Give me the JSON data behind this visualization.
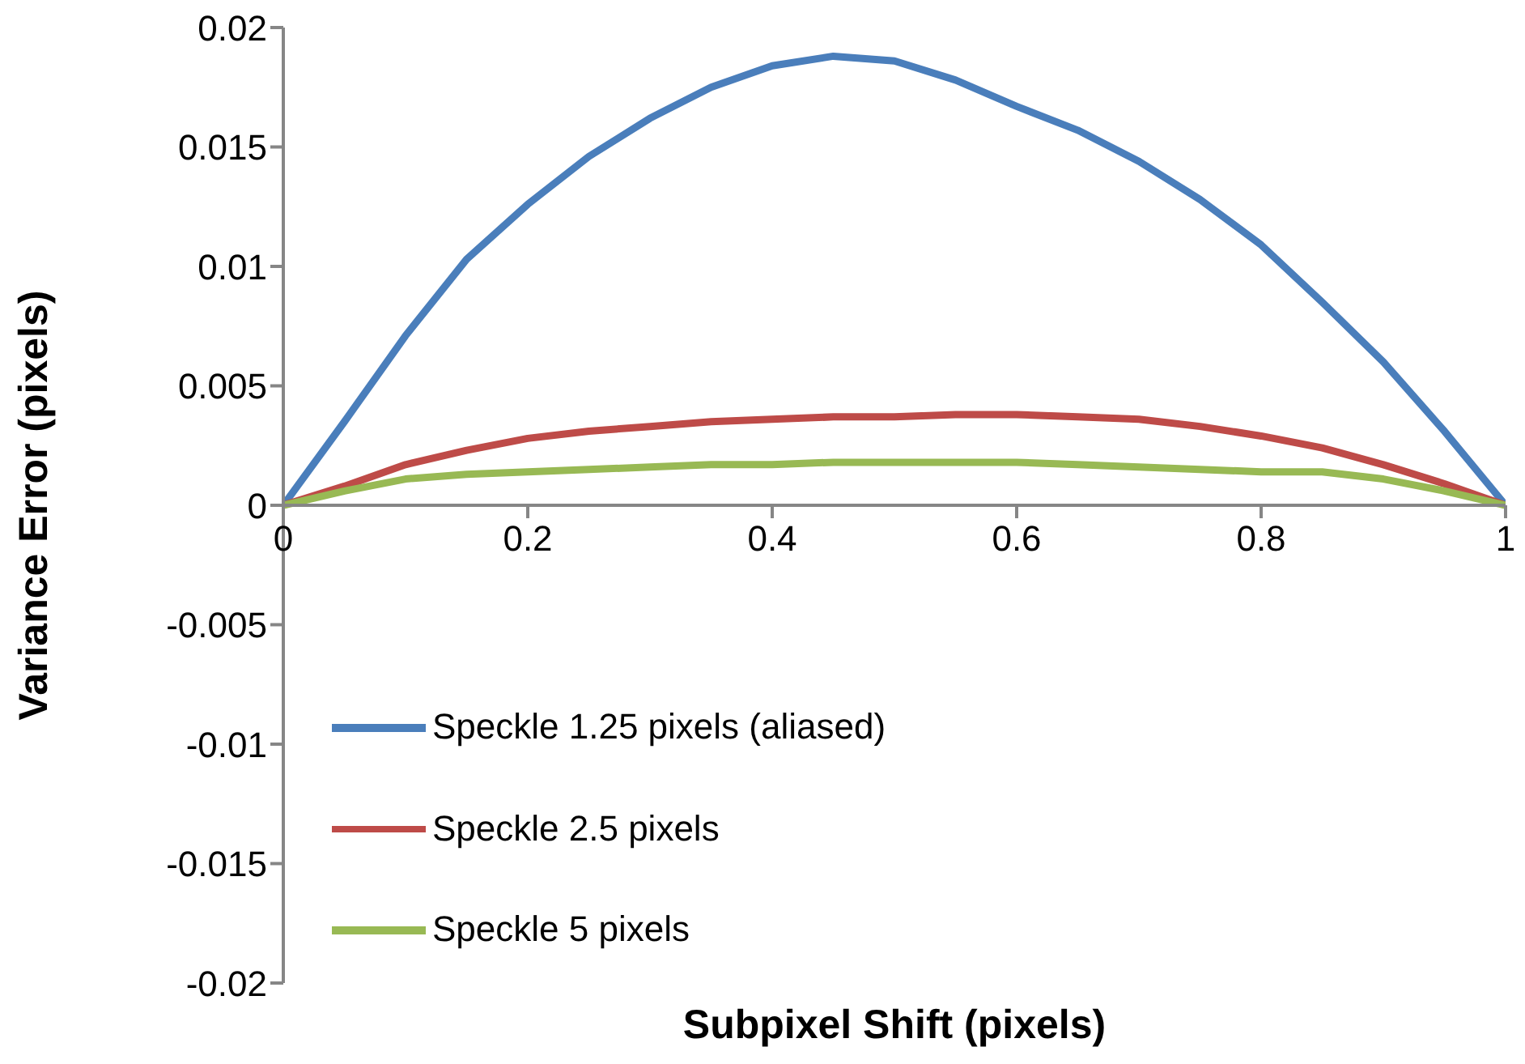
{
  "chart_data": {
    "type": "line",
    "xlabel": "Subpixel Shift (pixels)",
    "ylabel": "Variance Error (pixels)",
    "x": [
      0,
      0.05,
      0.1,
      0.15,
      0.2,
      0.25,
      0.3,
      0.35,
      0.4,
      0.45,
      0.5,
      0.55,
      0.6,
      0.65,
      0.7,
      0.75,
      0.8,
      0.85,
      0.9,
      0.95,
      1
    ],
    "series": [
      {
        "name": "Speckle 1.25 pixels (aliased)",
        "color": "#4a7ebb",
        "values": [
          0,
          0.0035,
          0.0071,
          0.0103,
          0.0126,
          0.0146,
          0.0162,
          0.0175,
          0.0184,
          0.0188,
          0.0186,
          0.0178,
          0.0167,
          0.0157,
          0.0144,
          0.0128,
          0.0109,
          0.0085,
          0.006,
          0.0031,
          0
        ]
      },
      {
        "name": "Speckle 2.5 pixels",
        "color": "#be4b48",
        "values": [
          0,
          0.0008,
          0.0017,
          0.0023,
          0.0028,
          0.0031,
          0.0033,
          0.0035,
          0.0036,
          0.0037,
          0.0037,
          0.0038,
          0.0038,
          0.0037,
          0.0036,
          0.0033,
          0.0029,
          0.0024,
          0.0017,
          0.0009,
          0
        ]
      },
      {
        "name": "Speckle 5 pixels",
        "color": "#98b954",
        "values": [
          0,
          0.0006,
          0.0011,
          0.0013,
          0.0014,
          0.0015,
          0.0016,
          0.0017,
          0.0017,
          0.0018,
          0.0018,
          0.0018,
          0.0018,
          0.0017,
          0.0016,
          0.0015,
          0.0014,
          0.0014,
          0.0011,
          0.0006,
          0
        ]
      }
    ],
    "xlim": [
      0,
      1
    ],
    "xticks": [
      0,
      0.2,
      0.4,
      0.6,
      0.8,
      1
    ],
    "ylim": [
      -0.02,
      0.02
    ],
    "yticks": [
      -0.02,
      -0.015,
      -0.01,
      -0.005,
      0,
      0.005,
      0.01,
      0.015,
      0.02
    ],
    "grid": false,
    "legend": "bottom left",
    "marker": "none",
    "line_style": "solid"
  }
}
